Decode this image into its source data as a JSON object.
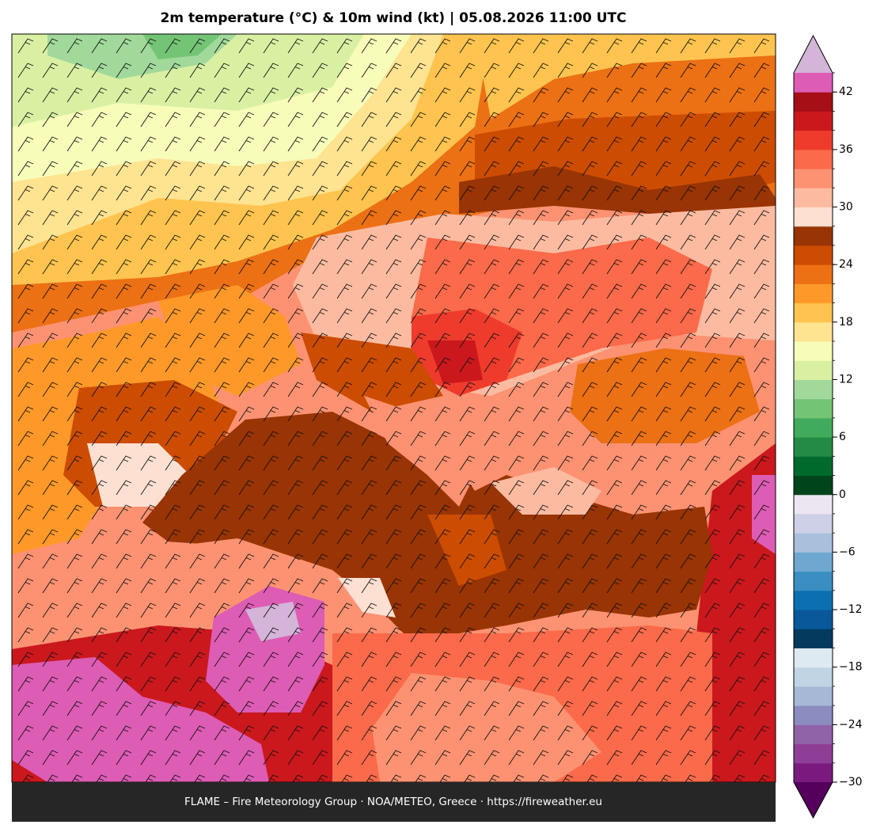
{
  "title": "2m temperature (°C) & 10m wind (kt)  |  05.08.2026 11:00 UTC",
  "footer": "FLAME – Fire Meteorology Group · NOA/METEO, Greece · https://fireweather.eu",
  "colorbar": {
    "levels": [
      -30,
      -28,
      -26,
      -24,
      -22,
      -20,
      -18,
      -16,
      -14,
      -12,
      -10,
      -8,
      -6,
      -4,
      -2,
      0,
      2,
      4,
      6,
      8,
      10,
      12,
      14,
      16,
      18,
      20,
      22,
      24,
      26,
      28,
      30,
      32,
      34,
      36,
      38,
      40,
      42,
      44
    ],
    "colors": [
      "#7b1a7e",
      "#8e3e96",
      "#9062a8",
      "#8c8cc0",
      "#a6b8d6",
      "#c0d4e4",
      "#deeaf2",
      "#033a5e",
      "#08589a",
      "#0c70b0",
      "#3a8ec2",
      "#6ea8d0",
      "#a8c0dc",
      "#cdd0e6",
      "#ece6f2",
      "#00441b",
      "#006a2c",
      "#238b45",
      "#41ab5d",
      "#74c476",
      "#a1d99b",
      "#d9f0a3",
      "#f7fcb9",
      "#fee391",
      "#fec44f",
      "#fe9929",
      "#ec7014",
      "#cc4c02",
      "#993404",
      "#fee0d2",
      "#fcbba1",
      "#fc9272",
      "#fb6a4a",
      "#ef3b2c",
      "#cb181d",
      "#a50f15",
      "#dd5cb4"
    ],
    "under_color": "#54005c",
    "over_color": "#d4b4d8",
    "ticks": [
      {
        "value": -30,
        "label": "−30"
      },
      {
        "value": -24,
        "label": "−24"
      },
      {
        "value": -18,
        "label": "−18"
      },
      {
        "value": -12,
        "label": "−12"
      },
      {
        "value": -6,
        "label": "−6"
      },
      0,
      6,
      12,
      18,
      24,
      30,
      36,
      42
    ]
  }
}
